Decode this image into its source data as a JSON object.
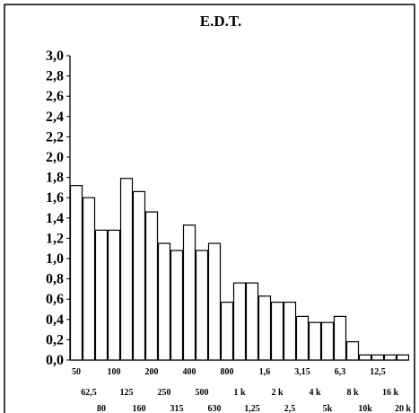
{
  "chart_data": {
    "type": "bar",
    "title": "E.D.T.",
    "xlabel": "",
    "ylabel": "",
    "ylim": [
      0,
      3.0
    ],
    "ytick_step": 0.2,
    "ytick_labels": [
      "0,0",
      "0,2",
      "0,4",
      "0,6",
      "0,8",
      "1,0",
      "1,2",
      "1,4",
      "1,6",
      "1,8",
      "2,0",
      "2,2",
      "2,4",
      "2,6",
      "2,8",
      "3,0"
    ],
    "categories": [
      "50",
      "62,5",
      "80",
      "100",
      "125",
      "160",
      "200",
      "250",
      "315",
      "400",
      "500",
      "630",
      "800",
      "1 k",
      "1,25",
      "1,6",
      "2 k",
      "2,5",
      "3,15",
      "4 k",
      "5k",
      "6,3",
      "8 k",
      "10k",
      "12,5",
      "16 k",
      "20 k"
    ],
    "values": [
      1.72,
      1.6,
      1.28,
      1.28,
      1.79,
      1.66,
      1.46,
      1.15,
      1.08,
      1.33,
      1.08,
      1.15,
      0.57,
      0.76,
      0.76,
      0.63,
      0.57,
      0.57,
      0.43,
      0.37,
      0.37,
      0.43,
      0.18,
      0.05,
      0.05,
      0.05,
      0.05
    ],
    "grid": false,
    "colors": {
      "bar_fill": "#ffffff",
      "bar_stroke": "#000000"
    }
  }
}
